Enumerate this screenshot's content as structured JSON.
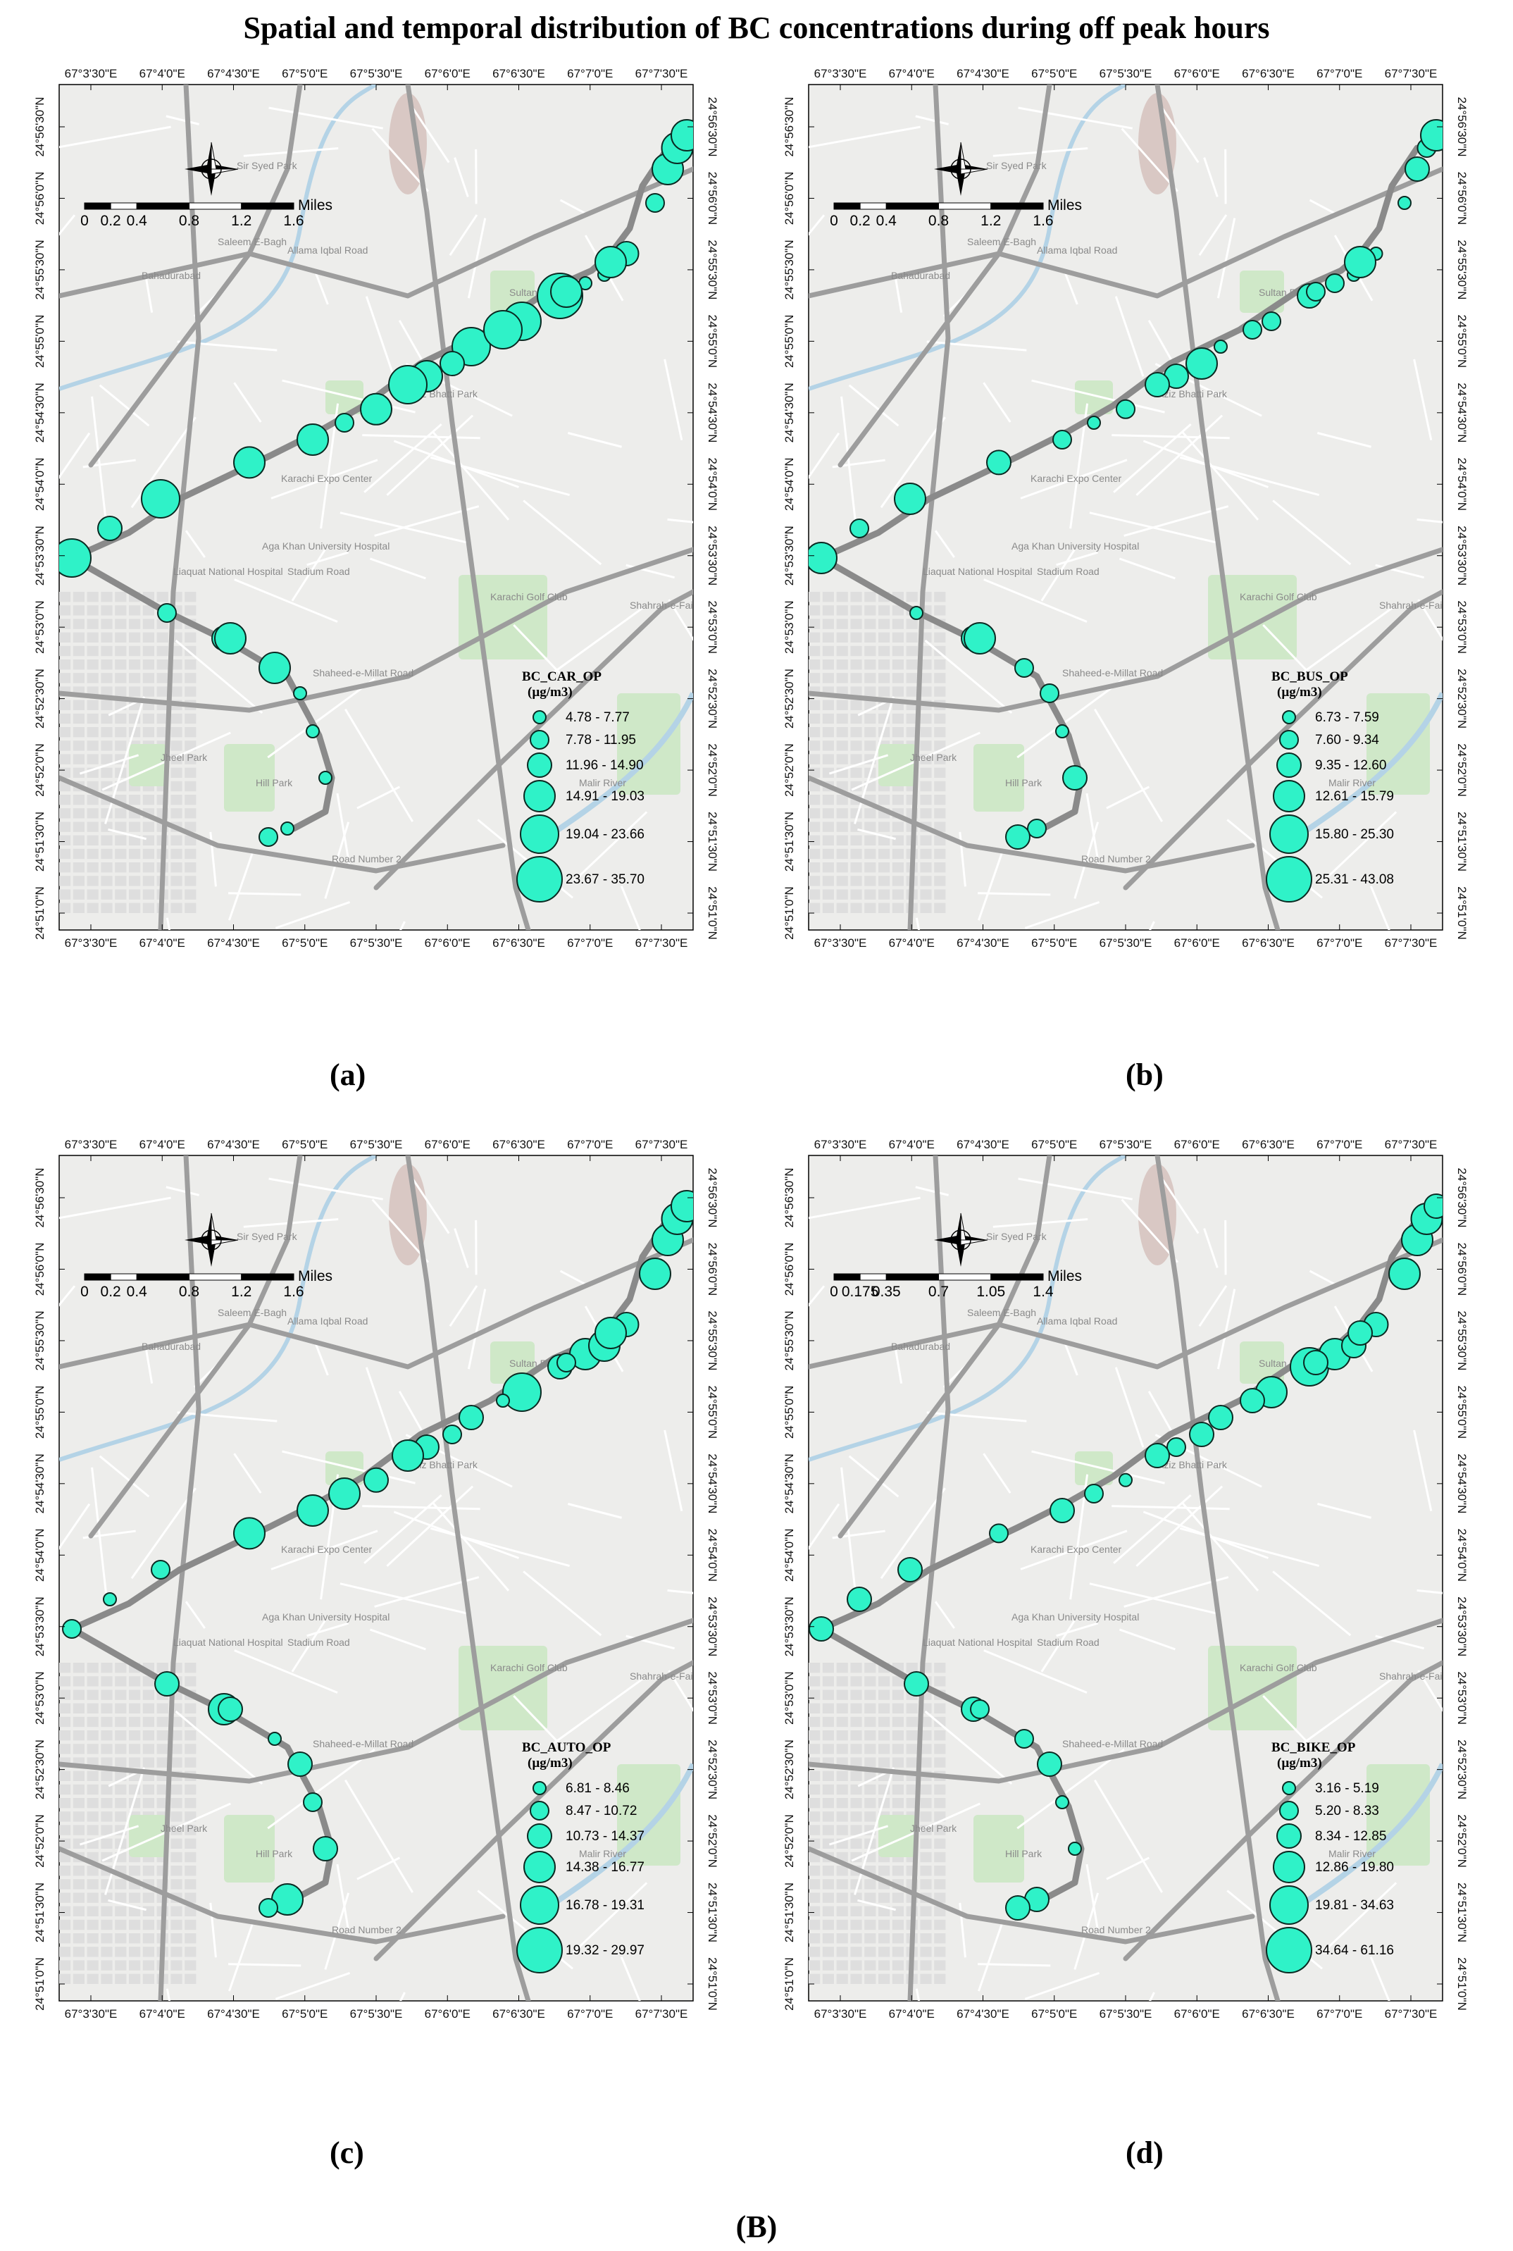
{
  "figure": {
    "title": "Spatial and temporal distribution of BC concentrations during off peak hours",
    "bottom_caption": "(B)"
  },
  "colors": {
    "marker_fill": "#2ff2c8",
    "marker_stroke": "#0a2a22",
    "map_bg": "#ededeb",
    "road_major": "#9d9d9d",
    "road_minor": "#ffffff",
    "park": "#cfe8c8",
    "water": "#b4d3e6"
  },
  "map": {
    "x_ticks": [
      "67°3'30\"E",
      "67°4'0\"E",
      "67°4'30\"E",
      "67°5'0\"E",
      "67°5'30\"E",
      "67°6'0\"E",
      "67°6'30\"E",
      "67°7'0\"E",
      "67°7'30\"E"
    ],
    "y_ticks": [
      "24°56'30\"N",
      "24°56'0\"N",
      "24°55'30\"N",
      "24°55'0\"N",
      "24°54'30\"N",
      "24°54'0\"N",
      "24°53'30\"N",
      "24°53'0\"N",
      "24°52'30\"N",
      "24°52'0\"N",
      "24°51'30\"N",
      "24°51'0\"N"
    ],
    "place_labels": [
      {
        "text": "Sir Syed Park",
        "x": 0.28,
        "y": 0.1
      },
      {
        "text": "Saleem E-Bagh",
        "x": 0.25,
        "y": 0.19
      },
      {
        "text": "Bahadurabad",
        "x": 0.13,
        "y": 0.23
      },
      {
        "text": "Allama Iqbal Road",
        "x": 0.36,
        "y": 0.2
      },
      {
        "text": "Aziz Bhatti Park",
        "x": 0.55,
        "y": 0.37
      },
      {
        "text": "Karachi Expo Center",
        "x": 0.35,
        "y": 0.47
      },
      {
        "text": "Aga Khan University Hospital",
        "x": 0.32,
        "y": 0.55
      },
      {
        "text": "Liaquat National Hospital",
        "x": 0.18,
        "y": 0.58
      },
      {
        "text": "Stadium Road",
        "x": 0.36,
        "y": 0.58
      },
      {
        "text": "Karachi Golf Club",
        "x": 0.68,
        "y": 0.61
      },
      {
        "text": "Jheel Park",
        "x": 0.16,
        "y": 0.8
      },
      {
        "text": "Hill Park",
        "x": 0.31,
        "y": 0.83
      },
      {
        "text": "Malir River",
        "x": 0.82,
        "y": 0.83
      },
      {
        "text": "Road Number 2",
        "x": 0.43,
        "y": 0.92
      },
      {
        "text": "Sultan Park",
        "x": 0.71,
        "y": 0.25
      },
      {
        "text": "Shahrah-e-Faisal",
        "x": 0.9,
        "y": 0.62
      },
      {
        "text": "Shaheed-e-Millat Road",
        "x": 0.4,
        "y": 0.7
      }
    ]
  },
  "panels": [
    {
      "label": "(a)",
      "legend_title_line1": "BC_CAR_OP",
      "legend_title_line2": "(µg/m3)",
      "legend_classes": [
        "4.78 - 7.77",
        "7.78 - 11.95",
        "11.96 - 14.90",
        "14.91 - 19.03",
        "19.04 - 23.66",
        "23.67 - 35.70"
      ],
      "scale_labels": [
        "0",
        "0.2",
        "0.4",
        "0.8",
        "1.2",
        "1.6"
      ],
      "scale_unit": "Miles",
      "points": [
        5,
        3,
        5,
        4,
        4,
        2,
        4,
        4,
        5,
        5,
        6,
        1,
        1,
        3,
        2,
        4,
        4,
        4,
        4,
        4,
        5,
        3,
        2,
        3,
        4,
        1,
        1,
        1,
        1,
        2,
        4,
        5
      ]
    },
    {
      "label": "(b)",
      "legend_title_line1": "BC_BUS_OP",
      "legend_title_line2": "(µg/m3)",
      "legend_classes": [
        "6.73 - 7.59",
        "7.60 - 9.34",
        "9.35 - 12.60",
        "12.61 - 15.79",
        "15.80 - 25.30",
        "25.31 - 43.08"
      ],
      "scale_labels": [
        "0",
        "0.2",
        "0.4",
        "0.8",
        "1.2",
        "1.6"
      ],
      "scale_unit": "Miles",
      "points": [
        4,
        2,
        4,
        3,
        2,
        1,
        2,
        3,
        1,
        2,
        3,
        2,
        1,
        1,
        1,
        3,
        2,
        4,
        4,
        2,
        2,
        4,
        1,
        3,
        2,
        2,
        1,
        3,
        2,
        3,
        4,
        3
      ]
    },
    {
      "label": "(c)",
      "legend_title_line1": "BC_AUTO_OP",
      "legend_title_line2": "(µg/m3)",
      "legend_classes": [
        "6.81 - 8.46",
        "8.47 - 10.72",
        "10.73 - 14.37",
        "14.38 - 16.77",
        "16.78 - 19.31",
        "19.32 - 29.97"
      ],
      "scale_labels": [
        "0",
        "0.2",
        "0.4",
        "0.8",
        "1.2",
        "1.6"
      ],
      "scale_unit": "Miles",
      "points": [
        2,
        1,
        2,
        4,
        4,
        4,
        3,
        3,
        3,
        5,
        3,
        4,
        4,
        3,
        4,
        4,
        4,
        4,
        4,
        2,
        1,
        2,
        3,
        4,
        1,
        3,
        2,
        3,
        4,
        2,
        3,
        4
      ]
    },
    {
      "label": "(d)",
      "legend_title_line1": "BC_BIKE_OP",
      "legend_title_line2": "(µg/m3)",
      "legend_classes": [
        "3.16 - 5.19",
        "5.20 - 8.33",
        "8.34 - 12.85",
        "12.86 - 19.80",
        "19.81 - 34.63",
        "34.64 - 61.16"
      ],
      "scale_labels": [
        "0",
        "0.175",
        "0.35",
        "0.7",
        "1.05",
        "1.4"
      ],
      "scale_unit": "Miles",
      "points": [
        3,
        3,
        3,
        2,
        3,
        2,
        1,
        2,
        3,
        4,
        5,
        4,
        3,
        3,
        4,
        4,
        4,
        3,
        3,
        3,
        3,
        3,
        3,
        3,
        2,
        3,
        1,
        1,
        3,
        3,
        2,
        3
      ]
    }
  ]
}
